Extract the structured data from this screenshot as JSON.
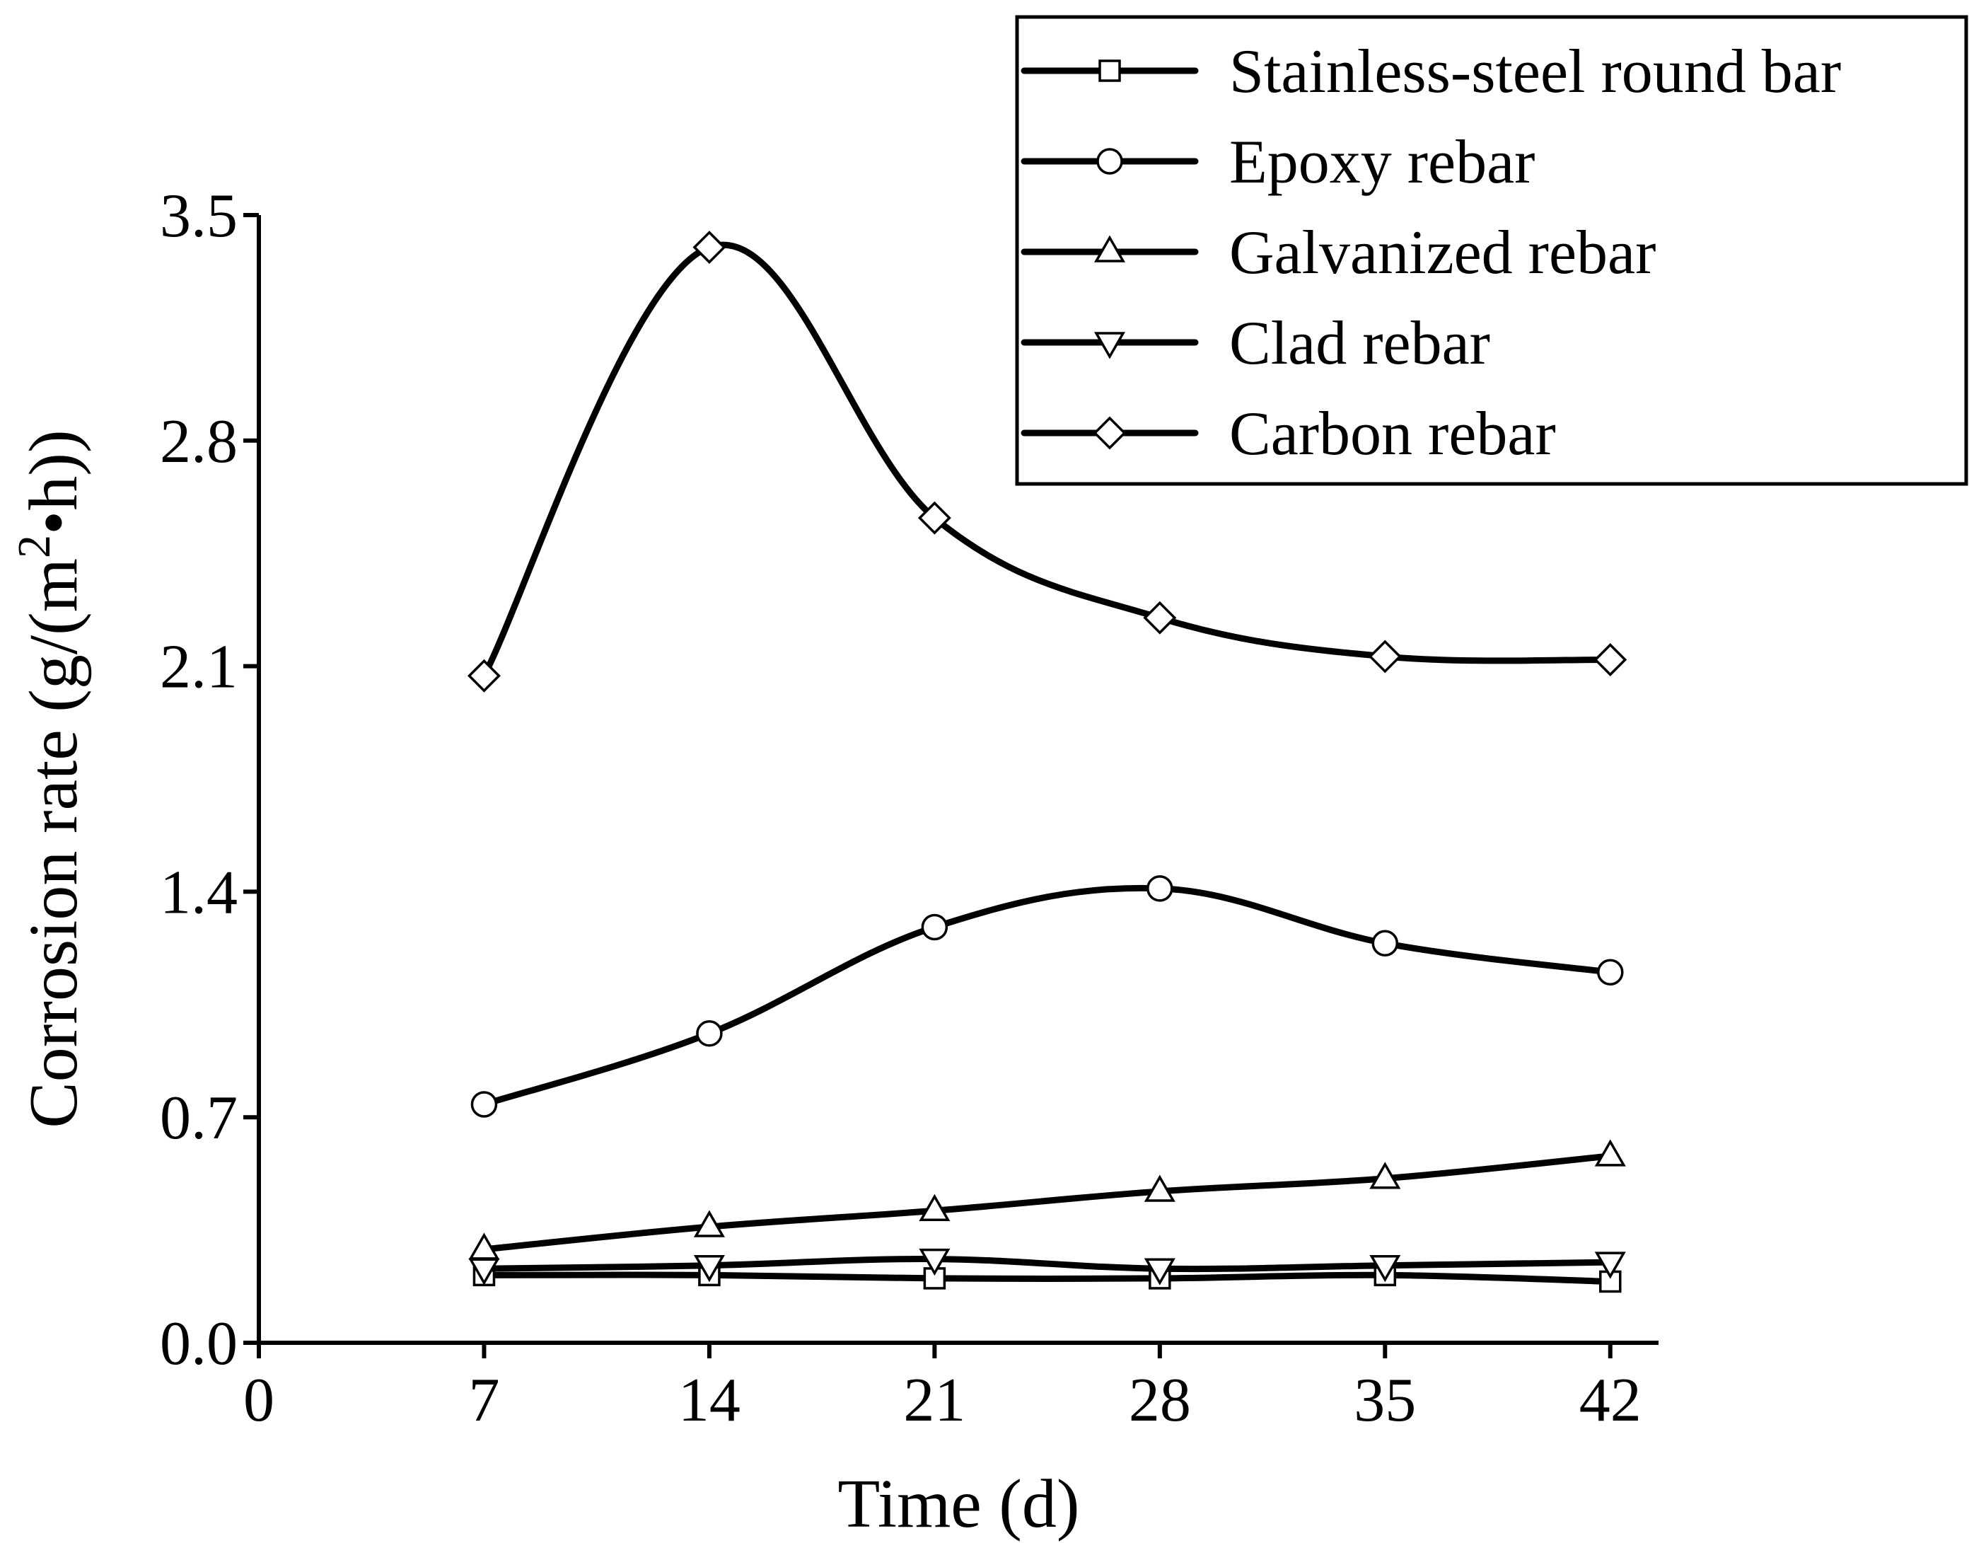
{
  "chart_data": {
    "type": "line",
    "xlabel": "Time (d)",
    "ylabel_main": "Corrosion rate (g/(m",
    "ylabel_sup": "2",
    "ylabel_tail": "•h))",
    "xlim": [
      0,
      43.5
    ],
    "ylim": [
      0,
      3.5
    ],
    "x_ticks": [
      "0",
      "7",
      "14",
      "21",
      "28",
      "35",
      "42"
    ],
    "y_ticks": [
      "0.0",
      "0.7",
      "1.4",
      "2.1",
      "2.8",
      "3.5"
    ],
    "x": [
      7,
      14,
      21,
      28,
      35,
      42
    ],
    "series": [
      {
        "name": "Stainless-steel round bar",
        "marker": "square",
        "values": [
          0.21,
          0.21,
          0.2,
          0.2,
          0.21,
          0.19
        ]
      },
      {
        "name": "Epoxy rebar",
        "marker": "circle",
        "values": [
          0.74,
          0.96,
          1.29,
          1.41,
          1.24,
          1.15
        ]
      },
      {
        "name": "Galvanized rebar",
        "marker": "triangle-up",
        "values": [
          0.29,
          0.36,
          0.41,
          0.47,
          0.51,
          0.58
        ]
      },
      {
        "name": "Clad rebar",
        "marker": "triangle-down",
        "values": [
          0.23,
          0.24,
          0.26,
          0.23,
          0.24,
          0.25
        ]
      },
      {
        "name": "Carbon rebar",
        "marker": "diamond",
        "values": [
          2.07,
          3.4,
          2.56,
          2.25,
          2.13,
          2.12
        ]
      }
    ],
    "legend_position": "top-right",
    "grid": false,
    "title": ""
  }
}
